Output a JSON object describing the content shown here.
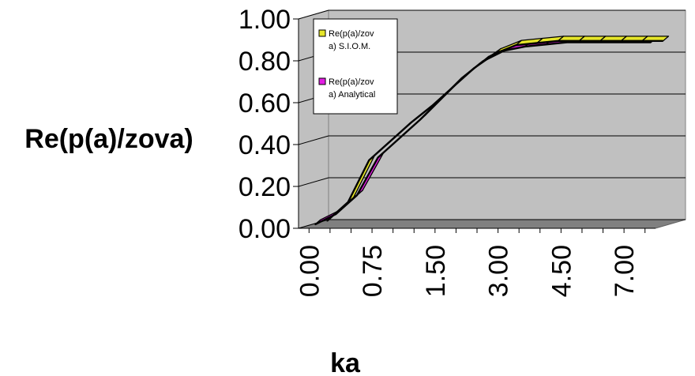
{
  "chart_data": {
    "type": "line",
    "style": "3d-ribbon",
    "title": "",
    "xlabel": "ka",
    "ylabel": "Re(p(a)/zova)",
    "ylim": [
      0,
      1
    ],
    "y_ticks": [
      "0.00",
      "0.20",
      "0.40",
      "0.60",
      "0.80",
      "1.00"
    ],
    "x_tick_labels": [
      "0.00",
      "0.75",
      "1.50",
      "3.00",
      "4.50",
      "7.00"
    ],
    "x_tick_positions": [
      0,
      3,
      6,
      9,
      12,
      15
    ],
    "x_category_count": 17,
    "grid": true,
    "legend_placement": "top-left inside plot",
    "colors": {
      "wall": "#c0c0c0",
      "floor": "#808080",
      "gridline": "#000000",
      "siom": "#e6e62a",
      "analytical": "#e21ee2"
    },
    "series": [
      {
        "name": "Re(p(a)/zov a) S.I.O.M.",
        "legend_lines": [
          "Re(p(a)/zov",
          "a) S.I.O.M."
        ],
        "color": "#e6e62a",
        "values": [
          0.01,
          0.1,
          0.3,
          0.39,
          0.48,
          0.56,
          0.65,
          0.74,
          0.81,
          0.85,
          0.86,
          0.87,
          0.87,
          0.87,
          0.87,
          0.87,
          0.87
        ]
      },
      {
        "name": "Re(p(a)/zov a) Analytical",
        "legend_lines": [
          "Re(p(a)/zov",
          "a) Analytical"
        ],
        "color": "#e21ee2",
        "values": [
          0.01,
          0.06,
          0.15,
          0.33,
          0.42,
          0.51,
          0.61,
          0.71,
          0.79,
          0.84,
          0.86,
          0.87,
          0.88,
          0.88,
          0.88,
          0.88,
          0.88
        ]
      }
    ]
  }
}
